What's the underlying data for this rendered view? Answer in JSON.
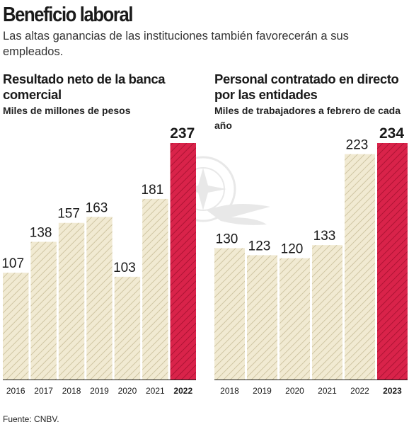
{
  "header": {
    "title": "Beneficio laboral",
    "subtitle": "Las altas ganancias de las instituciones también favorecerán a sus empleados."
  },
  "source": "Fuente: CNBV.",
  "colors": {
    "regular_fill": "#f1ead2",
    "hatch": "#c8bd98",
    "highlight_fill": "#d9234a",
    "highlight_hatch": "#a4102f",
    "axis": "#1a1a1a"
  },
  "watermark": "eagle-seal-watermark",
  "chart_data": [
    {
      "type": "bar",
      "title": "Resultado neto de la banca comercial",
      "subtitle": "Miles de millones de pesos",
      "categories": [
        "2016",
        "2017",
        "2018",
        "2019",
        "2020",
        "2021",
        "2022"
      ],
      "values": [
        107,
        138,
        157,
        163,
        103,
        181,
        237
      ],
      "value_labels": [
        "107",
        "138",
        "157",
        "163",
        "103",
        "181",
        "237"
      ],
      "highlight_index": 6,
      "ylim": [
        0,
        237
      ],
      "grid": false,
      "xlabel": "",
      "ylabel": ""
    },
    {
      "type": "bar",
      "title": "Personal contratado en directo por las entidades",
      "subtitle": "Miles de trabajadores a febrero de cada año",
      "categories": [
        "2018",
        "2019",
        "2020",
        "2021",
        "2022",
        "2023"
      ],
      "values": [
        130,
        123,
        120,
        133,
        223,
        234
      ],
      "value_labels": [
        "130",
        "123",
        "120",
        "133",
        "223",
        "234"
      ],
      "highlight_index": 5,
      "ylim": [
        0,
        234
      ],
      "grid": false,
      "xlabel": "",
      "ylabel": ""
    }
  ]
}
